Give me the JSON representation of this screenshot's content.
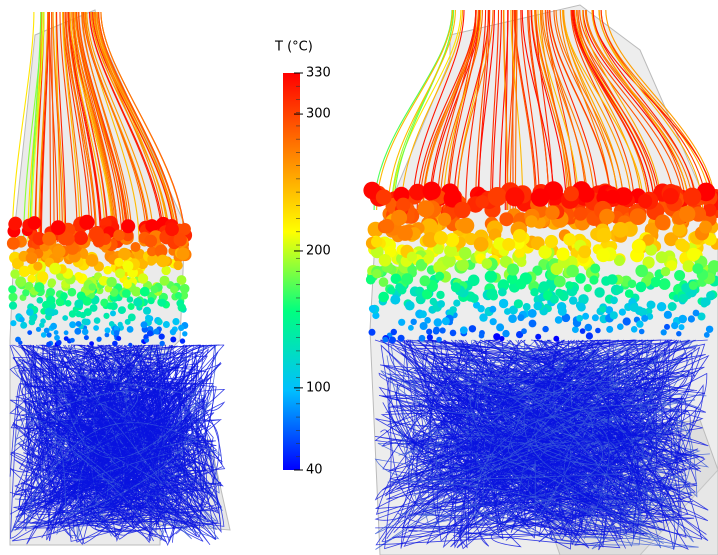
{
  "colorbar": {
    "title": "T (°C)",
    "lim": [
      40,
      330
    ],
    "ticks": [
      40,
      100,
      200,
      300,
      330
    ],
    "colors": [
      "#0000ff",
      "#00bfff",
      "#00ff80",
      "#ffff00",
      "#ff8000",
      "#ff0000"
    ]
  }
}
